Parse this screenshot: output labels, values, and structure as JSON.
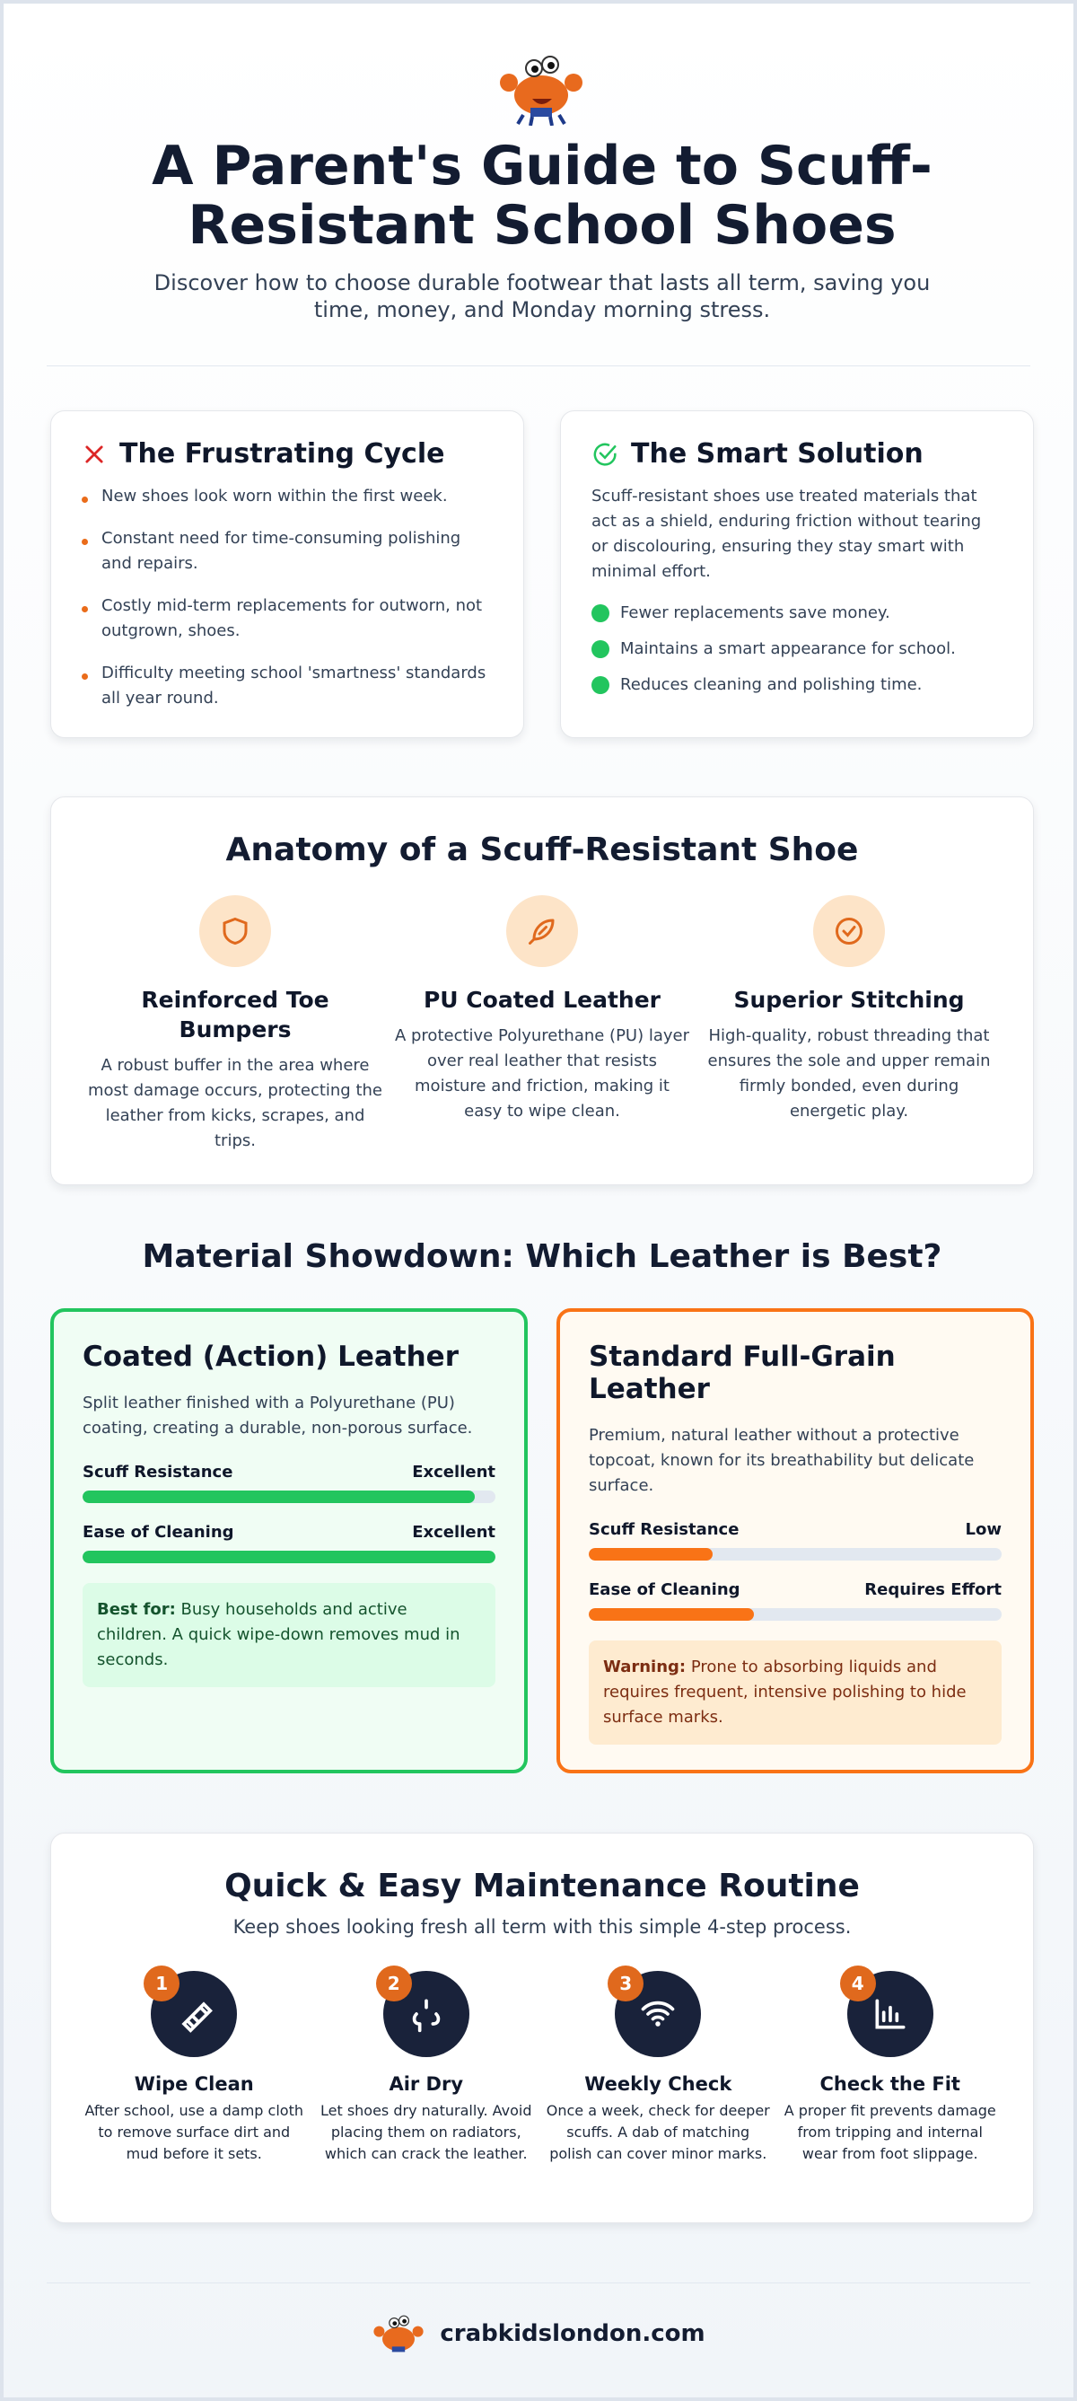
{
  "header": {
    "title": "A Parent's Guide to Scuff-Resistant School Shoes",
    "subtitle": "Discover how to choose durable footwear that lasts all term, saving you time, money, and Monday morning stress."
  },
  "problem": {
    "title": "The Frustrating Cycle",
    "items": [
      "New shoes look worn within the first week.",
      "Constant need for time-consuming polishing and repairs.",
      "Costly mid-term replacements for outworn, not outgrown, shoes.",
      "Difficulty meeting school 'smartness' standards all year round."
    ]
  },
  "solution": {
    "title": "The Smart Solution",
    "text": "Scuff-resistant shoes use treated materials that act as a shield, enduring friction without tearing or discolouring, ensuring they stay smart with minimal effort.",
    "items": [
      "Fewer replacements save money.",
      "Maintains a smart appearance for school.",
      "Reduces cleaning and polishing time."
    ]
  },
  "anatomy": {
    "title": "Anatomy of a Scuff-Resistant Shoe",
    "features": [
      {
        "title": "Reinforced Toe Bumpers",
        "text": "A robust buffer in the area where most damage occurs, protecting the leather from kicks, scrapes, and trips."
      },
      {
        "title": "PU Coated Leather",
        "text": "A protective Polyurethane (PU) layer over real leather that resists moisture and friction, making it easy to wipe clean."
      },
      {
        "title": "Superior Stitching",
        "text": "High-quality, robust threading that ensures the sole and upper remain firmly bonded, even during energetic play."
      }
    ]
  },
  "showdown": {
    "title": "Material Showdown: Which Leather is Best?",
    "materials": [
      {
        "title": "Coated (Action) Leather",
        "text": "Split leather finished with a Polyurethane (PU) coating, creating a durable, non-porous surface.",
        "color": "#22c55e",
        "metrics": [
          {
            "label": "Scuff Resistance",
            "rating": "Excellent",
            "fill": 95
          },
          {
            "label": "Ease of Cleaning",
            "rating": "Excellent",
            "fill": 100
          }
        ],
        "note_label": "Best for:",
        "note": "Busy households and active children. A quick wipe-down removes mud in seconds."
      },
      {
        "title": "Standard Full-Grain Leather",
        "text": "Premium, natural leather without a protective topcoat, known for its breathability but delicate surface.",
        "color": "#f97316",
        "metrics": [
          {
            "label": "Scuff Resistance",
            "rating": "Low",
            "fill": 30
          },
          {
            "label": "Ease of Cleaning",
            "rating": "Requires Effort",
            "fill": 40
          }
        ],
        "note_label": "Warning:",
        "note": "Prone to absorbing liquids and requires frequent, intensive polishing to hide surface marks."
      }
    ]
  },
  "maintenance": {
    "title": "Quick & Easy Maintenance Routine",
    "subtitle": "Keep shoes looking fresh all term with this simple 4-step process.",
    "steps": [
      {
        "number": 1,
        "title": "Wipe Clean",
        "text": "After school, use a damp cloth to remove surface dirt and mud before it sets."
      },
      {
        "number": 2,
        "title": "Air Dry",
        "text": "Let shoes dry naturally. Avoid placing them on radiators, which can crack the leather."
      },
      {
        "number": 3,
        "title": "Weekly Check",
        "text": "Once a week, check for deeper scuffs. A dab of matching polish can cover minor marks."
      },
      {
        "number": 4,
        "title": "Check the Fit",
        "text": "A proper fit prevents damage from tripping and internal wear from foot slippage."
      }
    ]
  },
  "footer": {
    "site": "crabkidslondon.com"
  }
}
